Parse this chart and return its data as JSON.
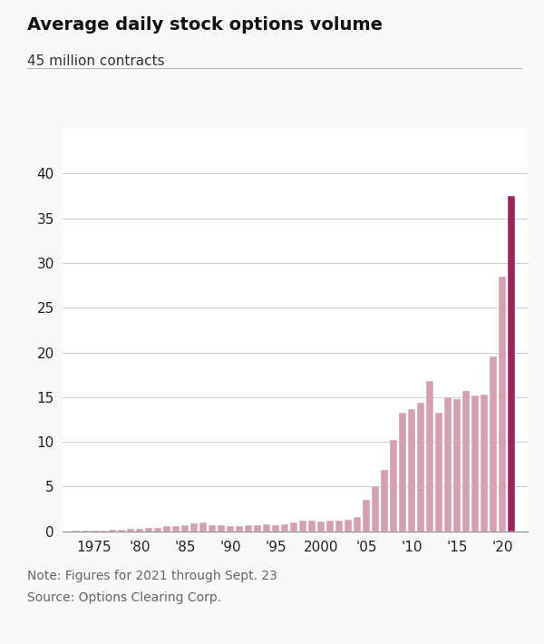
{
  "title": "Average daily stock options volume",
  "subtitle": "45 million contracts",
  "note": "Note: Figures for 2021 through Sept. 23",
  "source": "Source: Options Clearing Corp.",
  "years": [
    1973,
    1974,
    1975,
    1976,
    1977,
    1978,
    1979,
    1980,
    1981,
    1982,
    1983,
    1984,
    1985,
    1986,
    1987,
    1988,
    1989,
    1990,
    1991,
    1992,
    1993,
    1994,
    1995,
    1996,
    1997,
    1998,
    1999,
    2000,
    2001,
    2002,
    2003,
    2004,
    2005,
    2006,
    2007,
    2008,
    2009,
    2010,
    2011,
    2012,
    2013,
    2014,
    2015,
    2016,
    2017,
    2018,
    2019,
    2020,
    2021
  ],
  "values": [
    0.03,
    0.05,
    0.07,
    0.1,
    0.15,
    0.2,
    0.25,
    0.3,
    0.4,
    0.35,
    0.55,
    0.6,
    0.7,
    0.85,
    1.0,
    0.65,
    0.7,
    0.55,
    0.6,
    0.65,
    0.7,
    0.75,
    0.65,
    0.8,
    1.0,
    1.15,
    1.2,
    1.1,
    1.15,
    1.2,
    1.3,
    1.6,
    3.5,
    5.0,
    6.9,
    10.2,
    13.3,
    13.7,
    14.4,
    16.8,
    13.3,
    15.0,
    14.8,
    15.7,
    15.2,
    15.3,
    19.5,
    28.5,
    37.5
  ],
  "bar_color_normal": "#d4a0b0",
  "bar_color_highlight": "#9b2358",
  "highlight_year": 2021,
  "ylim": [
    0,
    45
  ],
  "yticks": [
    0,
    5,
    10,
    15,
    20,
    25,
    30,
    35,
    40
  ],
  "xlim_left": 1971.5,
  "xlim_right": 2022.8,
  "xtick_years": [
    1975,
    1980,
    1985,
    1990,
    1995,
    2000,
    2005,
    2010,
    2015,
    2020
  ],
  "xtick_labels": [
    "1975",
    "'80",
    "'85",
    "'90",
    "'95",
    "2000",
    "'05",
    "'10",
    "'15",
    "'20"
  ],
  "background_color": "#f8f8f8",
  "plot_bg_color": "#ffffff",
  "grid_color": "#cccccc",
  "title_fontsize": 14,
  "subtitle_fontsize": 11,
  "tick_fontsize": 11,
  "note_fontsize": 10,
  "bar_width": 0.78
}
